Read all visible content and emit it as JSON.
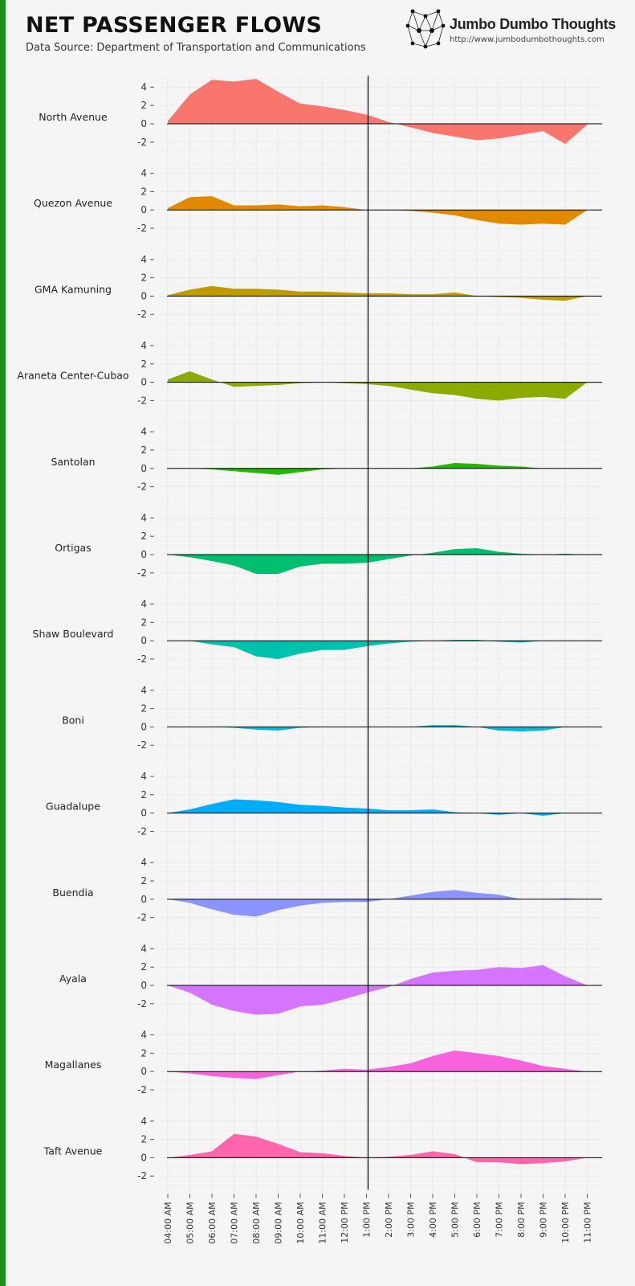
{
  "header": {
    "title": "NET PASSENGER FLOWS",
    "subtitle": "Data Source: Department of Transportation and Communications"
  },
  "brand": {
    "name": "Jumbo Dumbo Thoughts",
    "url": "http://www.jumbodumbothoughts.com",
    "logo_icon": "network-graph-icon"
  },
  "colors": {
    "background": "#f5f5f5",
    "left_accent": "#1e8c1e"
  },
  "chart_data": {
    "type": "area",
    "title": "NET PASSENGER FLOWS",
    "layout": "small-multiples",
    "x": [
      "04:00 AM",
      "05:00 AM",
      "06:00 AM",
      "07:00 AM",
      "08:00 AM",
      "09:00 AM",
      "10:00 AM",
      "11:00 AM",
      "12:00 PM",
      "1:00 PM",
      "2:00 PM",
      "3:00 PM",
      "4:00 PM",
      "5:00 PM",
      "6:00 PM",
      "7:00 PM",
      "8:00 PM",
      "9:00 PM",
      "10:00 PM",
      "11:00 PM"
    ],
    "y_ticks": [
      4,
      2,
      0,
      -2
    ],
    "y_tick_labels": [
      "4",
      "2",
      "0",
      "-2"
    ],
    "ylim": [
      -3,
      5
    ],
    "reference_line_x": "1:00 PM",
    "grid": true,
    "series": [
      {
        "name": "North Avenue",
        "color": "#F8766D",
        "values": [
          0.3,
          3.2,
          4.8,
          4.6,
          4.9,
          3.5,
          2.2,
          1.9,
          1.5,
          1.0,
          0.2,
          -0.4,
          -1.0,
          -1.4,
          -1.8,
          -1.6,
          -1.2,
          -0.8,
          -2.2,
          -0.1
        ]
      },
      {
        "name": "Quezon Avenue",
        "color": "#E18A00",
        "values": [
          0.2,
          1.4,
          1.5,
          0.5,
          0.5,
          0.6,
          0.4,
          0.5,
          0.3,
          0.0,
          0.0,
          -0.1,
          -0.3,
          -0.6,
          -1.1,
          -1.5,
          -1.6,
          -1.5,
          -1.6,
          0.0
        ]
      },
      {
        "name": "GMA Kamuning",
        "color": "#BE9C00",
        "values": [
          0.1,
          0.7,
          1.1,
          0.8,
          0.8,
          0.7,
          0.5,
          0.5,
          0.4,
          0.3,
          0.3,
          0.2,
          0.2,
          0.4,
          0.0,
          -0.1,
          -0.2,
          -0.4,
          -0.5,
          0.0
        ]
      },
      {
        "name": "Araneta Center-Cubao",
        "color": "#8CAB00",
        "values": [
          0.3,
          1.2,
          0.3,
          -0.5,
          -0.4,
          -0.3,
          -0.1,
          0.0,
          -0.1,
          -0.2,
          -0.4,
          -0.8,
          -1.2,
          -1.4,
          -1.8,
          -2.0,
          -1.7,
          -1.6,
          -1.8,
          0.0
        ]
      },
      {
        "name": "Santolan",
        "color": "#24B700",
        "values": [
          0.0,
          0.0,
          -0.1,
          -0.3,
          -0.5,
          -0.7,
          -0.4,
          -0.1,
          0.0,
          0.0,
          0.0,
          0.0,
          0.2,
          0.6,
          0.5,
          0.3,
          0.2,
          0.0,
          0.0,
          0.0
        ]
      },
      {
        "name": "Ortigas",
        "color": "#00BE70",
        "values": [
          0.0,
          -0.3,
          -0.7,
          -1.2,
          -2.1,
          -2.1,
          -1.3,
          -1.0,
          -1.0,
          -0.9,
          -0.5,
          -0.1,
          0.2,
          0.6,
          0.7,
          0.3,
          0.1,
          0.0,
          0.1,
          0.0
        ]
      },
      {
        "name": "Shaw Boulevard",
        "color": "#00C1AB",
        "values": [
          0.0,
          0.0,
          -0.4,
          -0.7,
          -1.7,
          -2.0,
          -1.4,
          -1.0,
          -1.0,
          -0.6,
          -0.3,
          -0.1,
          0.0,
          0.1,
          0.1,
          -0.1,
          -0.2,
          0.0,
          0.0,
          0.0
        ]
      },
      {
        "name": "Boni",
        "color": "#00BBDA",
        "values": [
          0.0,
          0.0,
          0.0,
          -0.1,
          -0.3,
          -0.4,
          -0.1,
          0.0,
          0.0,
          0.0,
          0.0,
          0.0,
          0.2,
          0.2,
          0.0,
          -0.4,
          -0.5,
          -0.4,
          0.0,
          0.0
        ]
      },
      {
        "name": "Guadalupe",
        "color": "#00ACFC",
        "values": [
          0.0,
          0.4,
          1.0,
          1.5,
          1.4,
          1.2,
          0.9,
          0.8,
          0.6,
          0.5,
          0.3,
          0.3,
          0.4,
          0.1,
          0.0,
          -0.2,
          0.0,
          -0.3,
          0.0,
          0.0
        ]
      },
      {
        "name": "Buendia",
        "color": "#8B93FF",
        "values": [
          0.0,
          -0.4,
          -1.1,
          -1.7,
          -1.9,
          -1.2,
          -0.7,
          -0.4,
          -0.3,
          -0.3,
          0.0,
          0.4,
          0.8,
          1.0,
          0.7,
          0.5,
          0.0,
          0.0,
          0.1,
          0.0
        ]
      },
      {
        "name": "Ayala",
        "color": "#D575FE",
        "values": [
          0.0,
          -0.8,
          -2.1,
          -2.8,
          -3.2,
          -3.1,
          -2.3,
          -2.1,
          -1.5,
          -0.8,
          -0.2,
          0.7,
          1.4,
          1.6,
          1.7,
          2.0,
          1.9,
          2.2,
          1.0,
          0.0
        ]
      },
      {
        "name": "Magallanes",
        "color": "#F962DD",
        "values": [
          0.0,
          -0.2,
          -0.5,
          -0.7,
          -0.8,
          -0.4,
          0.0,
          0.1,
          0.3,
          0.2,
          0.5,
          0.9,
          1.7,
          2.3,
          2.0,
          1.7,
          1.2,
          0.6,
          0.3,
          0.0
        ]
      },
      {
        "name": "Taft Avenue",
        "color": "#FF65AC",
        "values": [
          0.0,
          0.3,
          0.7,
          2.6,
          2.3,
          1.5,
          0.6,
          0.5,
          0.2,
          0.0,
          0.1,
          0.3,
          0.7,
          0.4,
          -0.5,
          -0.5,
          -0.7,
          -0.6,
          -0.4,
          0.0
        ]
      }
    ]
  }
}
